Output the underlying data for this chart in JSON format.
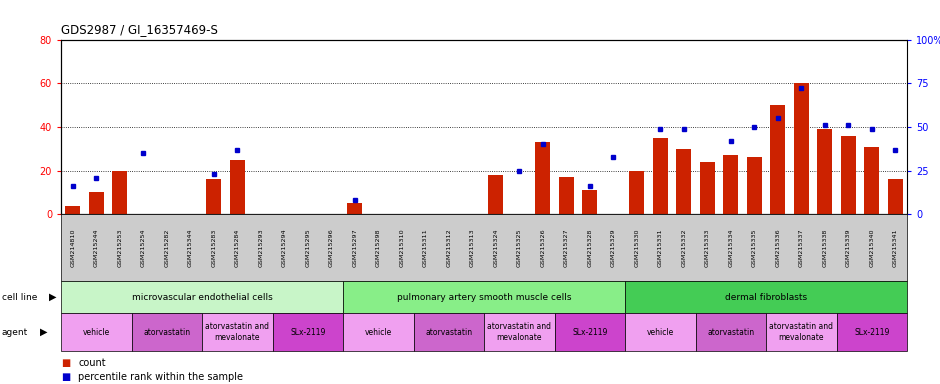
{
  "title": "GDS2987 / GI_16357469-S",
  "samples": [
    "GSM214810",
    "GSM215244",
    "GSM215253",
    "GSM215254",
    "GSM215282",
    "GSM215344",
    "GSM215283",
    "GSM215284",
    "GSM215293",
    "GSM215294",
    "GSM215295",
    "GSM215296",
    "GSM215297",
    "GSM215298",
    "GSM215310",
    "GSM215311",
    "GSM215312",
    "GSM215313",
    "GSM215324",
    "GSM215325",
    "GSM215326",
    "GSM215327",
    "GSM215328",
    "GSM215329",
    "GSM215330",
    "GSM215331",
    "GSM215332",
    "GSM215333",
    "GSM215334",
    "GSM215335",
    "GSM215336",
    "GSM215337",
    "GSM215338",
    "GSM215339",
    "GSM215340",
    "GSM215341"
  ],
  "counts": [
    4,
    10,
    20,
    0,
    0,
    0,
    16,
    25,
    0,
    0,
    0,
    0,
    5,
    0,
    0,
    0,
    0,
    0,
    18,
    0,
    33,
    17,
    11,
    0,
    20,
    35,
    30,
    24,
    27,
    26,
    50,
    60,
    39,
    36,
    31,
    16
  ],
  "percentiles": [
    16,
    21,
    null,
    35,
    null,
    null,
    23,
    37,
    null,
    null,
    null,
    null,
    8,
    null,
    null,
    null,
    null,
    null,
    null,
    25,
    40,
    null,
    16,
    33,
    null,
    49,
    49,
    null,
    42,
    50,
    55,
    72,
    51,
    51,
    49,
    37
  ],
  "cell_line_groups": [
    {
      "label": "microvascular endothelial cells",
      "start": 0,
      "end": 12,
      "color": "#C8F5C8"
    },
    {
      "label": "pulmonary artery smooth muscle cells",
      "start": 12,
      "end": 24,
      "color": "#88EE88"
    },
    {
      "label": "dermal fibroblasts",
      "start": 24,
      "end": 36,
      "color": "#44CC55"
    }
  ],
  "agent_groups": [
    {
      "label": "vehicle",
      "start": 0,
      "end": 3,
      "color": "#F0A0F0"
    },
    {
      "label": "atorvastatin",
      "start": 3,
      "end": 6,
      "color": "#CC66CC"
    },
    {
      "label": "atorvastatin and\nmevalonate",
      "start": 6,
      "end": 9,
      "color": "#F0A0F0"
    },
    {
      "label": "SLx-2119",
      "start": 9,
      "end": 12,
      "color": "#CC44CC"
    },
    {
      "label": "vehicle",
      "start": 12,
      "end": 15,
      "color": "#F0A0F0"
    },
    {
      "label": "atorvastatin",
      "start": 15,
      "end": 18,
      "color": "#CC66CC"
    },
    {
      "label": "atorvastatin and\nmevalonate",
      "start": 18,
      "end": 21,
      "color": "#F0A0F0"
    },
    {
      "label": "SLx-2119",
      "start": 21,
      "end": 24,
      "color": "#CC44CC"
    },
    {
      "label": "vehicle",
      "start": 24,
      "end": 27,
      "color": "#F0A0F0"
    },
    {
      "label": "atorvastatin",
      "start": 27,
      "end": 30,
      "color": "#CC66CC"
    },
    {
      "label": "atorvastatin and\nmevalonate",
      "start": 30,
      "end": 33,
      "color": "#F0A0F0"
    },
    {
      "label": "SLx-2119",
      "start": 33,
      "end": 36,
      "color": "#CC44CC"
    }
  ],
  "ylim_left": [
    0,
    80
  ],
  "ylim_right": [
    0,
    100
  ],
  "yticks_left": [
    0,
    20,
    40,
    60,
    80
  ],
  "yticks_right": [
    0,
    25,
    50,
    75,
    100
  ],
  "right_tick_labels": [
    "0",
    "25",
    "50",
    "75",
    "100%"
  ],
  "bar_color": "#CC2200",
  "dot_color": "#0000CC",
  "tick_bg_color": "#CCCCCC",
  "plot_bg": "#FFFFFF",
  "gridline_vals": [
    20,
    40,
    60
  ]
}
